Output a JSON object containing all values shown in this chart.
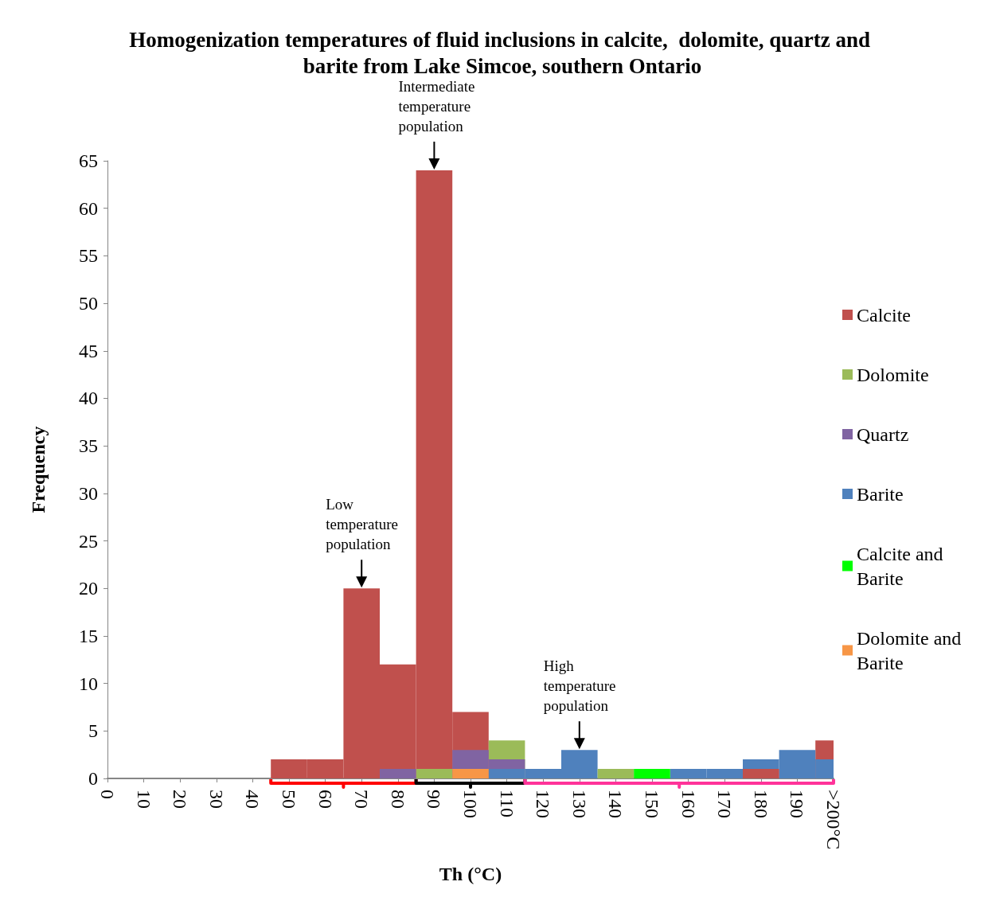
{
  "chart_data": {
    "type": "bar",
    "title": "Homogenization temperatures of fluid inclusions in calcite,  dolomite, quartz and barite from Lake Simcoe, southern Ontario",
    "xlabel": "Th (°C)",
    "ylabel": "Frequency",
    "categories": [
      "0",
      "10",
      "20",
      "30",
      "40",
      "50",
      "60",
      "70",
      "80",
      "90",
      "100",
      "110",
      "120",
      "130",
      "140",
      "150",
      "160",
      "170",
      "180",
      "190",
      ">200°C"
    ],
    "series": [
      {
        "name": "Calcite",
        "color": "#c0504d",
        "values": [
          null,
          null,
          null,
          null,
          null,
          2,
          2,
          20,
          12,
          64,
          7,
          null,
          null,
          null,
          null,
          null,
          null,
          null,
          1,
          null,
          4
        ]
      },
      {
        "name": "Dolomite",
        "color": "#9bbb59",
        "values": [
          null,
          null,
          null,
          null,
          null,
          null,
          null,
          null,
          null,
          1,
          null,
          4,
          null,
          null,
          1,
          null,
          null,
          null,
          null,
          null,
          null
        ]
      },
      {
        "name": "Quartz",
        "color": "#8064a2",
        "values": [
          null,
          null,
          null,
          null,
          null,
          null,
          null,
          null,
          1,
          null,
          3,
          2,
          null,
          null,
          null,
          null,
          null,
          null,
          null,
          null,
          null
        ]
      },
      {
        "name": "Barite",
        "color": "#4f81bd",
        "values": [
          null,
          null,
          null,
          null,
          null,
          null,
          null,
          null,
          null,
          null,
          null,
          1,
          1,
          3,
          null,
          null,
          1,
          1,
          2,
          3,
          2
        ]
      },
      {
        "name": "Calcite and Barite",
        "color": "#00ff00",
        "values": [
          null,
          null,
          null,
          null,
          null,
          null,
          null,
          null,
          null,
          null,
          null,
          null,
          null,
          null,
          null,
          1,
          null,
          null,
          null,
          null,
          null
        ]
      },
      {
        "name": "Dolomite and Barite",
        "color": "#f79646",
        "values": [
          null,
          null,
          null,
          null,
          null,
          null,
          null,
          null,
          null,
          null,
          1,
          null,
          null,
          null,
          null,
          null,
          null,
          null,
          null,
          null,
          null
        ]
      }
    ],
    "ylim": [
      0,
      65
    ],
    "yticks": [
      0,
      5,
      10,
      15,
      20,
      25,
      30,
      35,
      40,
      45,
      50,
      55,
      60,
      65
    ],
    "legend": "right",
    "annotations": [
      {
        "text": "Low temperature population",
        "x": "70",
        "y": 20
      },
      {
        "text": "Intermediate temperature population",
        "x": "90",
        "y": 64
      },
      {
        "text": "High temperature population",
        "x": "130",
        "y": 3
      }
    ]
  }
}
